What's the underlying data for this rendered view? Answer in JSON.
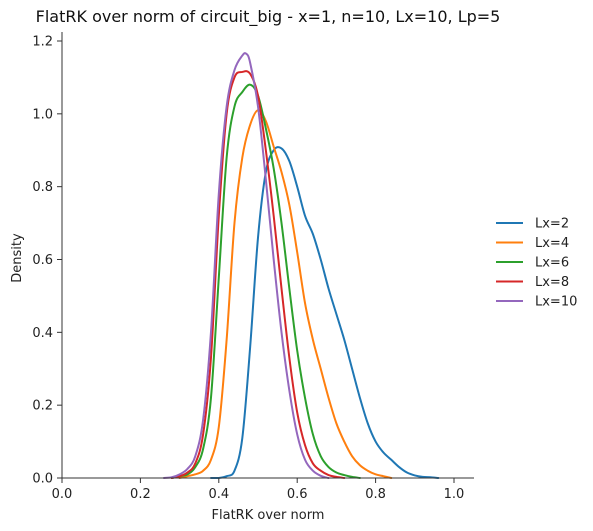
{
  "chart_data": {
    "type": "line",
    "title": "FlatRK over norm of circuit_big - x=1, n=10, Lx=10, Lp=5",
    "xlabel": "FlatRK over norm",
    "ylabel": "Density",
    "xlim": [
      0.0,
      1.0
    ],
    "ylim": [
      0.0,
      1.2
    ],
    "xticks": [
      "0.0",
      "0.2",
      "0.4",
      "0.6",
      "0.8",
      "1.0"
    ],
    "yticks": [
      "0.0",
      "0.2",
      "0.4",
      "0.6",
      "0.8",
      "1.0",
      "1.2"
    ],
    "grid": false,
    "legend_position": "right",
    "series": [
      {
        "name": "Lx=2",
        "color": "#1f77b4",
        "x": [
          0.38,
          0.4,
          0.42,
          0.44,
          0.46,
          0.48,
          0.5,
          0.52,
          0.54,
          0.56,
          0.58,
          0.6,
          0.62,
          0.64,
          0.66,
          0.68,
          0.7,
          0.72,
          0.74,
          0.76,
          0.78,
          0.8,
          0.82,
          0.84,
          0.86,
          0.88,
          0.9,
          0.92,
          0.94,
          0.96
        ],
        "y": [
          0.0,
          0.0,
          0.005,
          0.02,
          0.11,
          0.36,
          0.66,
          0.84,
          0.9,
          0.905,
          0.87,
          0.8,
          0.72,
          0.67,
          0.6,
          0.52,
          0.45,
          0.38,
          0.3,
          0.22,
          0.15,
          0.1,
          0.07,
          0.05,
          0.03,
          0.015,
          0.007,
          0.003,
          0.002,
          0.0
        ]
      },
      {
        "name": "Lx=4",
        "color": "#ff7f0e",
        "x": [
          0.3,
          0.32,
          0.34,
          0.36,
          0.38,
          0.4,
          0.42,
          0.44,
          0.46,
          0.48,
          0.5,
          0.52,
          0.54,
          0.56,
          0.58,
          0.6,
          0.62,
          0.64,
          0.66,
          0.68,
          0.7,
          0.72,
          0.74,
          0.76,
          0.78,
          0.8,
          0.82,
          0.84
        ],
        "y": [
          0.0,
          0.005,
          0.01,
          0.02,
          0.05,
          0.14,
          0.38,
          0.7,
          0.88,
          0.97,
          1.01,
          0.98,
          0.91,
          0.84,
          0.75,
          0.62,
          0.48,
          0.38,
          0.3,
          0.22,
          0.15,
          0.1,
          0.06,
          0.035,
          0.02,
          0.01,
          0.005,
          0.0
        ]
      },
      {
        "name": "Lx=6",
        "color": "#2ca02c",
        "x": [
          0.28,
          0.3,
          0.32,
          0.34,
          0.36,
          0.38,
          0.4,
          0.42,
          0.44,
          0.46,
          0.48,
          0.5,
          0.52,
          0.54,
          0.56,
          0.58,
          0.6,
          0.62,
          0.64,
          0.66,
          0.68,
          0.7,
          0.72,
          0.74,
          0.76
        ],
        "y": [
          0.0,
          0.005,
          0.01,
          0.03,
          0.08,
          0.22,
          0.55,
          0.88,
          1.02,
          1.06,
          1.08,
          1.05,
          0.96,
          0.85,
          0.7,
          0.52,
          0.35,
          0.22,
          0.12,
          0.06,
          0.03,
          0.015,
          0.008,
          0.003,
          0.0
        ]
      },
      {
        "name": "Lx=8",
        "color": "#d62728",
        "x": [
          0.28,
          0.3,
          0.32,
          0.34,
          0.36,
          0.38,
          0.4,
          0.42,
          0.44,
          0.46,
          0.48,
          0.5,
          0.52,
          0.54,
          0.56,
          0.58,
          0.6,
          0.62,
          0.64,
          0.66,
          0.68,
          0.7,
          0.72
        ],
        "y": [
          0.0,
          0.005,
          0.015,
          0.04,
          0.12,
          0.33,
          0.72,
          1.0,
          1.1,
          1.115,
          1.11,
          1.05,
          0.9,
          0.72,
          0.52,
          0.33,
          0.18,
          0.09,
          0.04,
          0.02,
          0.008,
          0.003,
          0.0
        ]
      },
      {
        "name": "Lx=10",
        "color": "#9467bd",
        "x": [
          0.26,
          0.28,
          0.3,
          0.32,
          0.34,
          0.36,
          0.38,
          0.4,
          0.42,
          0.44,
          0.46,
          0.47,
          0.48,
          0.5,
          0.52,
          0.54,
          0.56,
          0.58,
          0.6,
          0.62,
          0.64,
          0.66,
          0.68
        ],
        "y": [
          0.0,
          0.002,
          0.01,
          0.025,
          0.06,
          0.16,
          0.4,
          0.78,
          1.02,
          1.12,
          1.16,
          1.165,
          1.14,
          1.02,
          0.82,
          0.6,
          0.4,
          0.24,
          0.12,
          0.05,
          0.02,
          0.006,
          0.0
        ]
      }
    ]
  }
}
